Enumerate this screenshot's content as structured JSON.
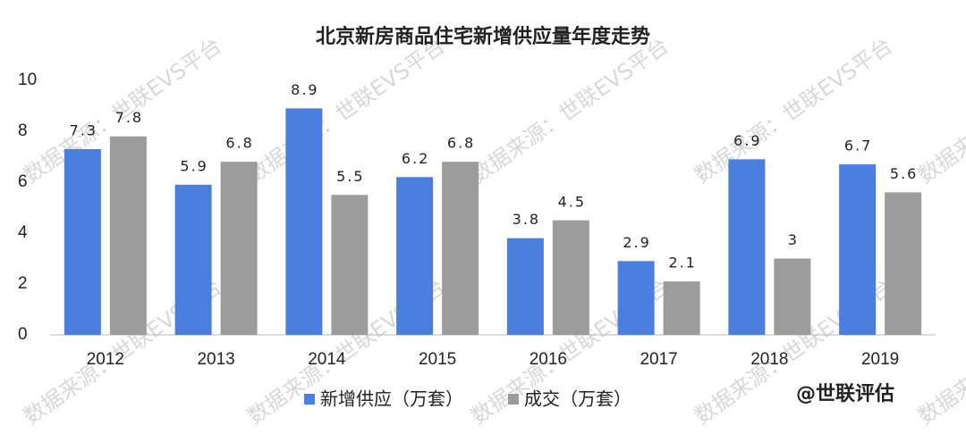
{
  "chart_data": {
    "type": "bar",
    "title": "北京新房商品住宅新增供应量年度走势",
    "categories": [
      "2012",
      "2013",
      "2014",
      "2015",
      "2016",
      "2017",
      "2018",
      "2019"
    ],
    "series": [
      {
        "name": "新增供应（万套）",
        "color": "#4a7fe0",
        "values": [
          7.3,
          5.9,
          8.9,
          6.2,
          3.8,
          2.9,
          6.9,
          6.7
        ]
      },
      {
        "name": "成交（万套）",
        "color": "#9c9c9c",
        "values": [
          7.8,
          6.8,
          5.5,
          6.8,
          4.5,
          2.1,
          3,
          5.6
        ]
      }
    ],
    "ylim": [
      0,
      10
    ],
    "yticks": [
      0,
      2,
      4,
      6,
      8,
      10
    ],
    "grid": false,
    "legend": "bottom",
    "watermark": "数据来源：世联EVS平台",
    "source_badge": "@世联评估"
  }
}
